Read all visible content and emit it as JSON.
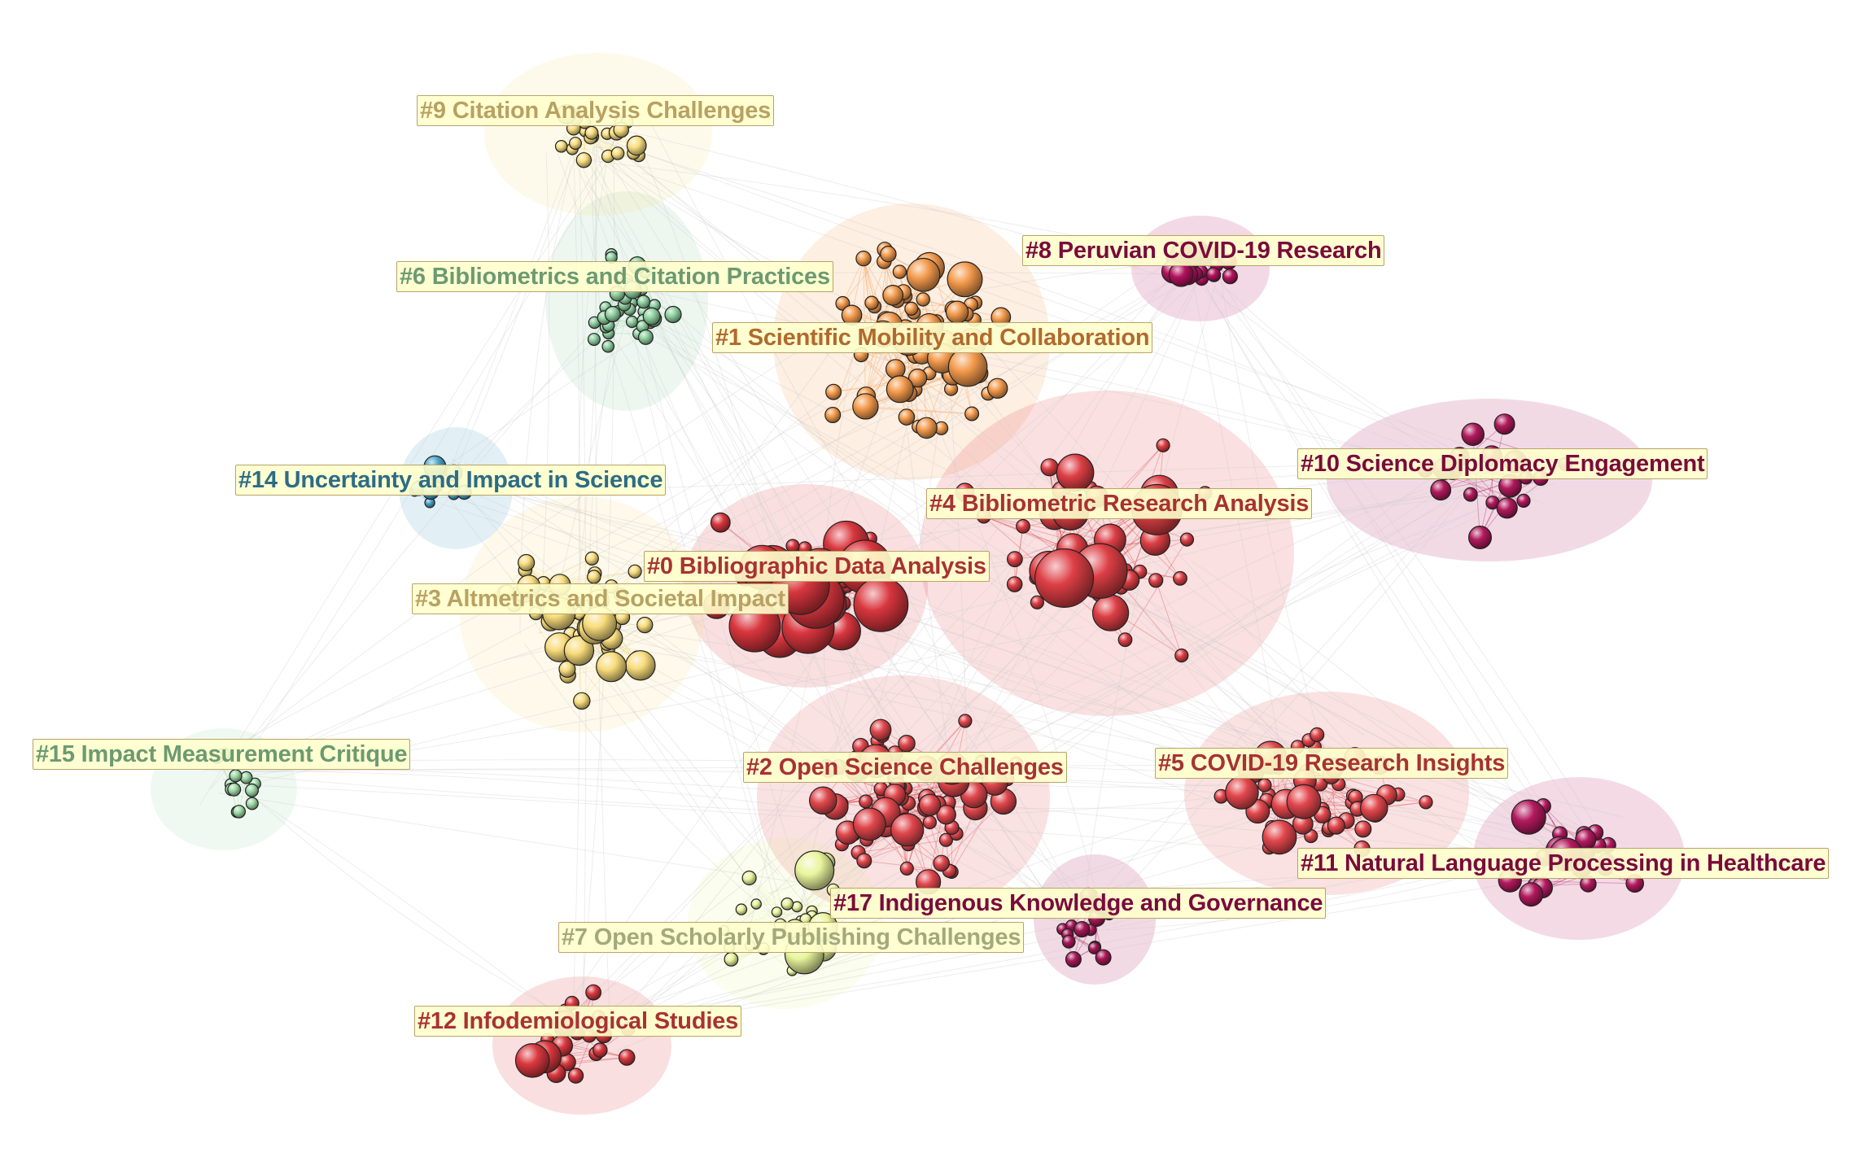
{
  "network": {
    "clusters": [
      {
        "id": 0,
        "label": "#0 Bibliographic Data Analysis",
        "color": "#d9363e",
        "text_color": "#a83232"
      },
      {
        "id": 1,
        "label": "#1 Scientific Mobility and Collaboration",
        "color": "#f39a4c",
        "text_color": "#b06a2e"
      },
      {
        "id": 2,
        "label": "#2 Open Science Challenges",
        "color": "#e0474c",
        "text_color": "#a83232"
      },
      {
        "id": 3,
        "label": "#3 Altmetrics and Societal Impact",
        "color": "#f8dc7c",
        "text_color": "#b8a163"
      },
      {
        "id": 4,
        "label": "#4 Bibliometric Research Analysis",
        "color": "#dd3f45",
        "text_color": "#a83232"
      },
      {
        "id": 5,
        "label": "#5 COVID-19 Research Insights",
        "color": "#e2474c",
        "text_color": "#a83232"
      },
      {
        "id": 6,
        "label": "#6 Bibliometrics and Citation Practices",
        "color": "#8fd0a0",
        "text_color": "#6c9a72"
      },
      {
        "id": 7,
        "label": "#7 Open Scholarly Publishing Challenges",
        "color": "#e9f59d",
        "text_color": "#a3a97a"
      },
      {
        "id": 8,
        "label": "#8 Peruvian COVID-19 Research",
        "color": "#b3125f",
        "text_color": "#7a0a3c"
      },
      {
        "id": 9,
        "label": "#9 Citation Analysis Challenges",
        "color": "#f8dd80",
        "text_color": "#b8a163"
      },
      {
        "id": 10,
        "label": "#10 Science Diplomacy Engagement",
        "color": "#b01a5c",
        "text_color": "#7a0a3c"
      },
      {
        "id": 11,
        "label": "#11 Natural Language Processing in Healthcare",
        "color": "#b31a5f",
        "text_color": "#7a0a3c"
      },
      {
        "id": 12,
        "label": "#12 Infodemiological Studies",
        "color": "#d9383e",
        "text_color": "#a83232"
      },
      {
        "id": 14,
        "label": "#14 Uncertainty and Impact in Science",
        "color": "#4aa3c7",
        "text_color": "#2c6c85"
      },
      {
        "id": 15,
        "label": "#15 Impact Measurement Critique",
        "color": "#9fd9a6",
        "text_color": "#6c9a72"
      },
      {
        "id": 17,
        "label": "#17 Indigenous Knowledge and Governance",
        "color": "#a71858",
        "text_color": "#7a0a3c"
      }
    ],
    "label_box": {
      "background": "#ffffcc",
      "border": "#b9a36a"
    },
    "edge_color": "#cccccc"
  }
}
